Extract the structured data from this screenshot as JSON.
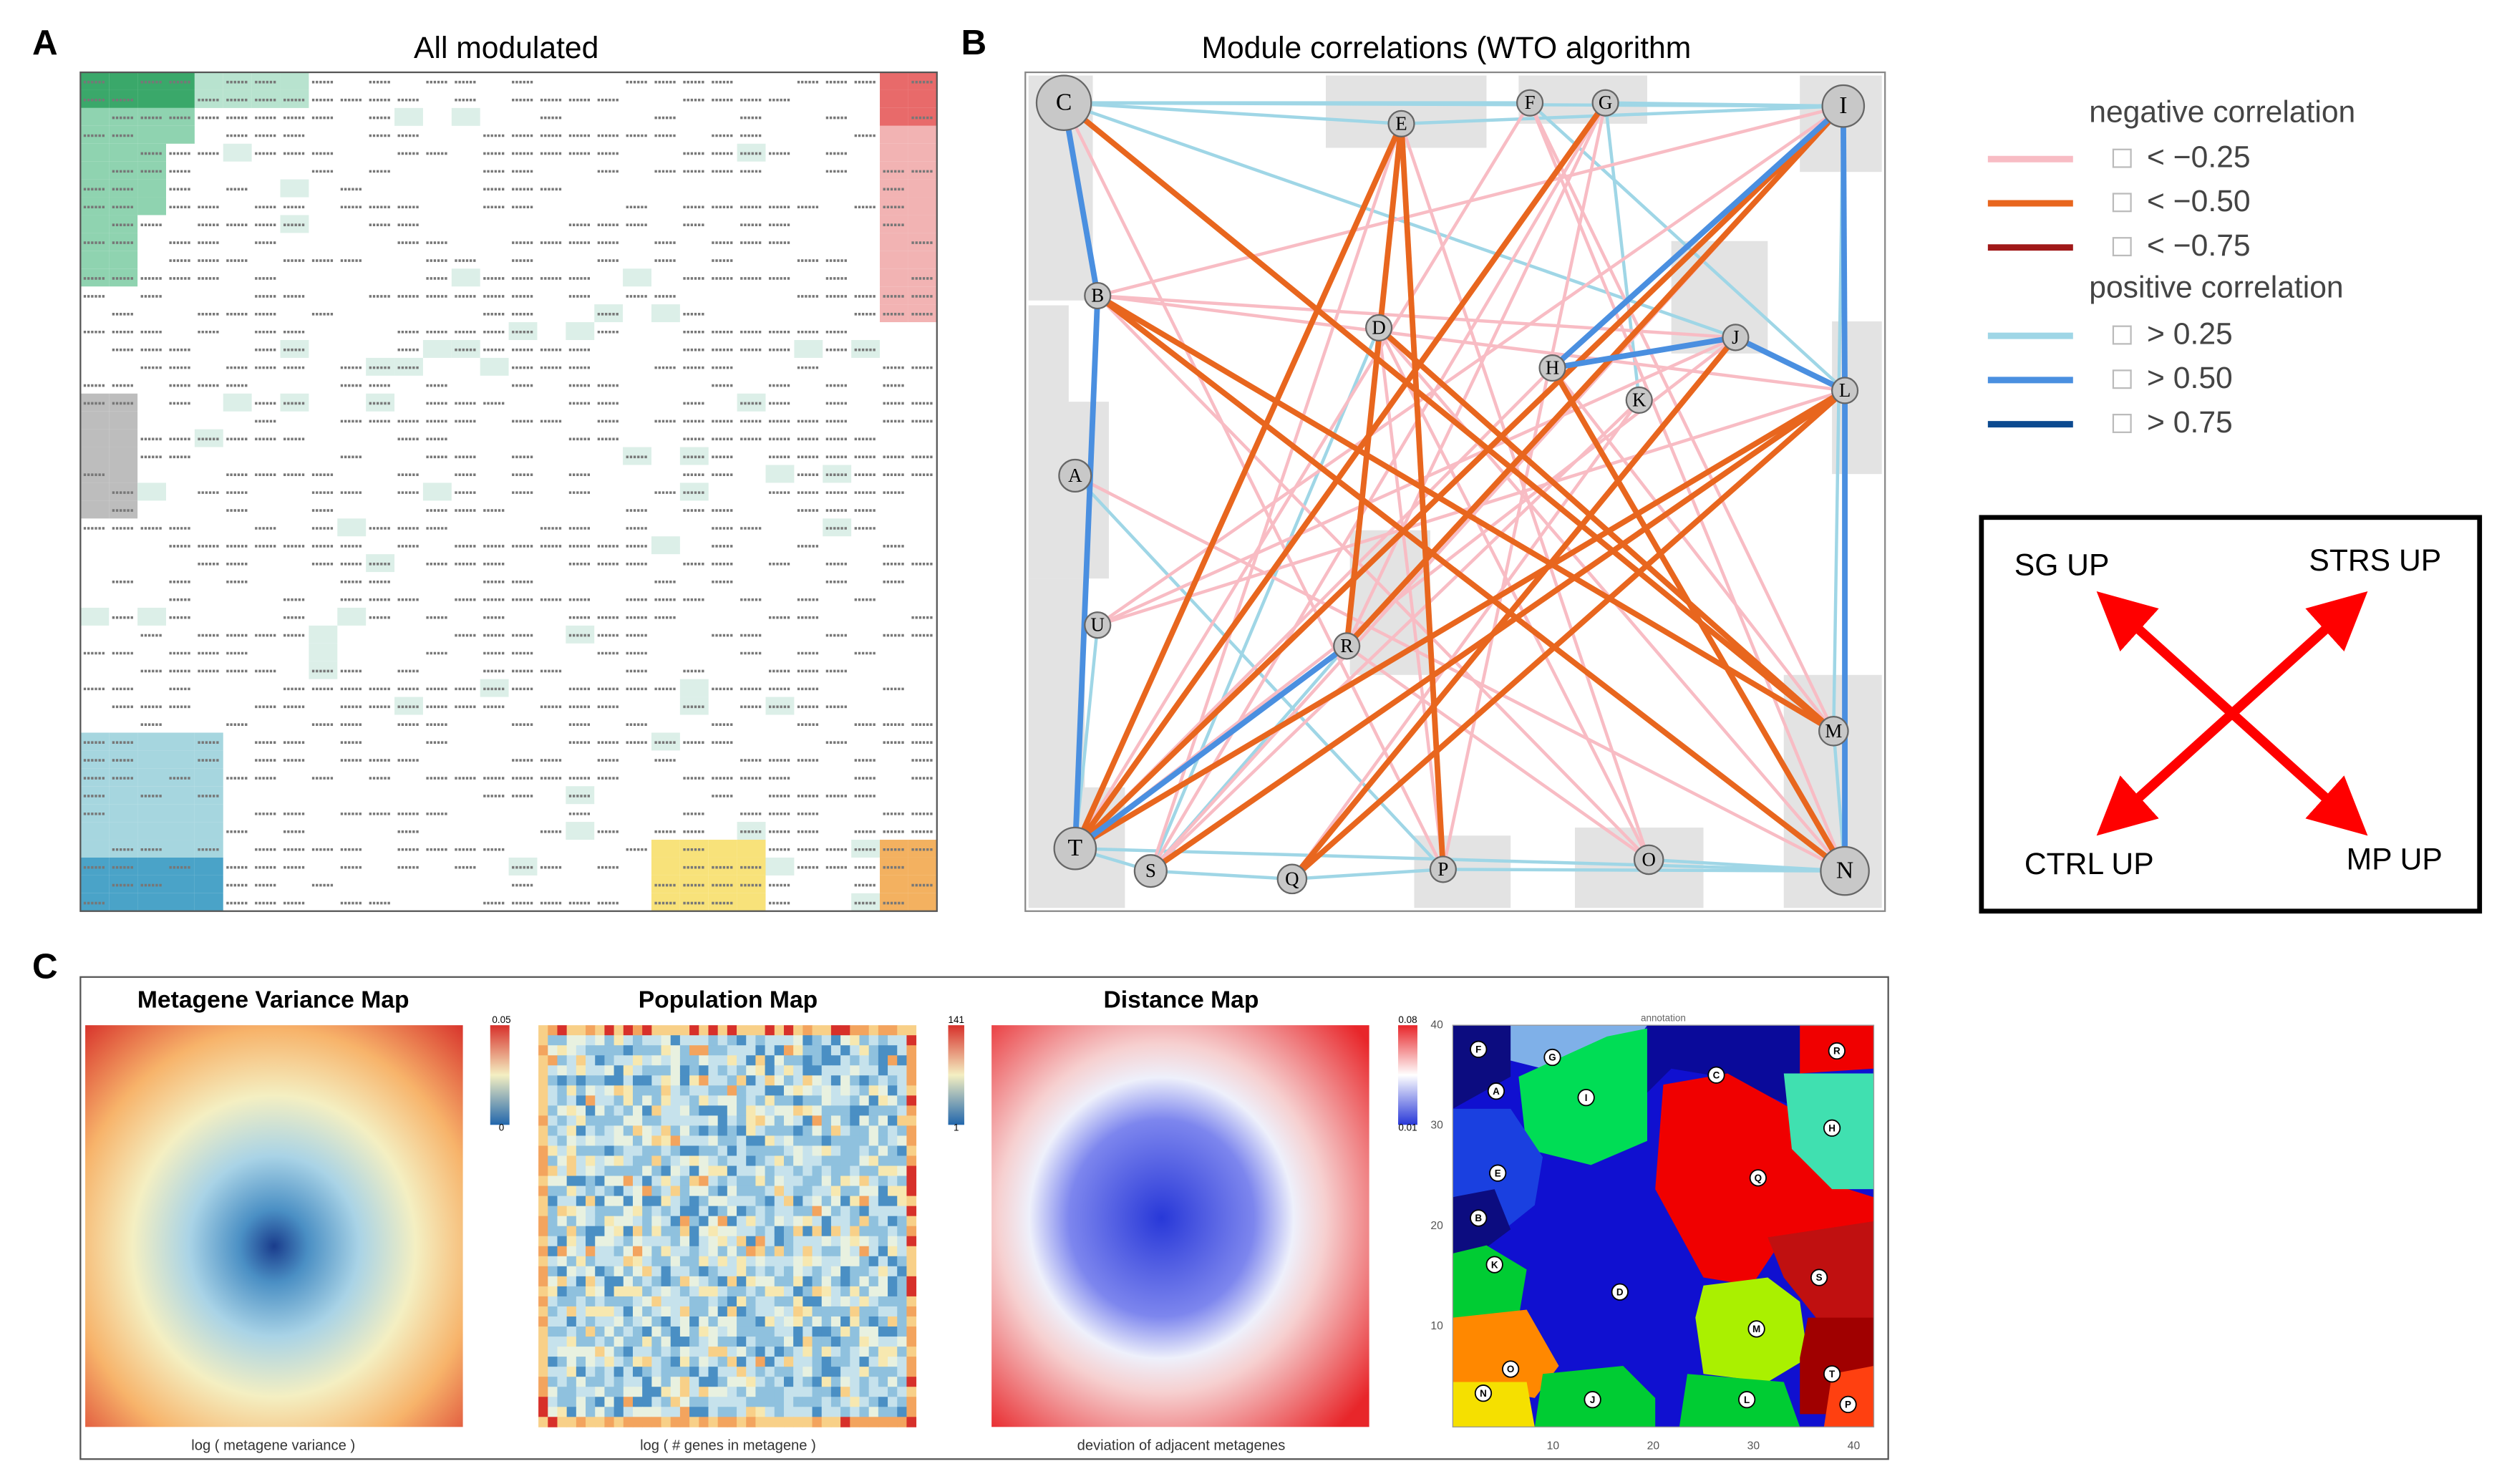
{
  "panels": {
    "a": {
      "label": "A",
      "title": "All modulated"
    },
    "b": {
      "label": "B",
      "title": "Module correlations (WTO algorithm",
      "nodes": [
        "C",
        "E",
        "F",
        "G",
        "I",
        "B",
        "D",
        "H",
        "J",
        "K",
        "L",
        "A",
        "U",
        "R",
        "M",
        "T",
        "S",
        "Q",
        "P",
        "O",
        "N"
      ],
      "legend": {
        "negative_title": "negative correlation",
        "negative": [
          "< −0.25",
          "< −0.50",
          "< −0.75"
        ],
        "positive_title": "positive correlation",
        "positive": [
          "> 0.25",
          "> 0.50",
          "> 0.75"
        ]
      },
      "arrows": [
        "SG UP",
        "STRS UP",
        "CTRL UP",
        "MP UP"
      ]
    },
    "c": {
      "label": "C",
      "maps": [
        {
          "title": "Metagene Variance Map",
          "caption": "log ( metagene variance )",
          "scale": [
            "0.05",
            "0"
          ]
        },
        {
          "title": "Population Map",
          "caption": "log ( # genes in metagene )",
          "scale": [
            "141",
            "1"
          ]
        },
        {
          "title": "Distance Map",
          "caption": "deviation of adjacent metagenes",
          "scale": [
            "0.08",
            "0.01"
          ]
        }
      ],
      "annotation": {
        "title": "annotation",
        "xticks": [
          10,
          20,
          30,
          40
        ],
        "yticks": [
          10,
          20,
          30,
          40
        ],
        "regions": [
          "F",
          "G",
          "A",
          "I",
          "C",
          "R",
          "H",
          "E",
          "Q",
          "B",
          "K",
          "D",
          "S",
          "M",
          "O",
          "T",
          "N",
          "J",
          "L",
          "P"
        ]
      }
    }
  }
}
